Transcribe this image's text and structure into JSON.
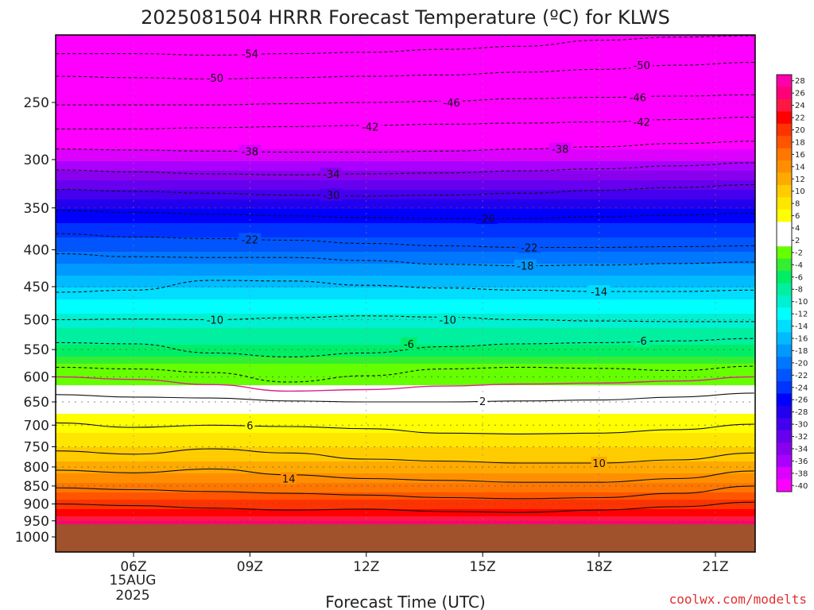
{
  "title": "2025081504 HRRR Forecast Temperature (ºC) for KLWS",
  "credit": "coolwx.com/modelts",
  "colors": {
    "terrain": "#a0522d",
    "freezing_line": "#e0208a"
  },
  "chart_data": {
    "type": "heatmap",
    "title": "2025081504 HRRR Forecast Temperature (ºC) for KLWS",
    "xlabel": "Forecast Time (UTC)",
    "ylabel": "",
    "y_axis": "pressure (hPa), inverted",
    "x_ticks": [
      {
        "label": "06Z",
        "hour": 6
      },
      {
        "label": "09Z",
        "hour": 9
      },
      {
        "label": "12Z",
        "hour": 12
      },
      {
        "label": "15Z",
        "hour": 15
      },
      {
        "label": "18Z",
        "hour": 18
      },
      {
        "label": "21Z",
        "hour": 21
      }
    ],
    "date_label": [
      "15AUG",
      "2025"
    ],
    "xlim": [
      4,
      22
    ],
    "y_ticks": [
      250,
      300,
      350,
      400,
      450,
      500,
      550,
      600,
      650,
      700,
      750,
      800,
      850,
      900,
      950,
      1000
    ],
    "ylim": [
      200,
      1030
    ],
    "surface_pressure": 960,
    "colorbar": {
      "ticks": [
        28,
        26,
        24,
        22,
        20,
        18,
        16,
        14,
        12,
        10,
        8,
        6,
        4,
        2,
        -2,
        -4,
        -6,
        -8,
        -10,
        -12,
        -14,
        -16,
        -18,
        -20,
        -22,
        -24,
        -26,
        -28,
        -30,
        -32,
        -34,
        -36,
        -38,
        -40
      ],
      "colors": [
        "#ff00aa",
        "#ff0077",
        "#ff1744",
        "#ff0000",
        "#ff3300",
        "#ff5500",
        "#ff7700",
        "#ff8f00",
        "#ffaa00",
        "#ffcc00",
        "#ffe600",
        "#ffff00",
        "#ffffff",
        "#ffffff",
        "#66ff00",
        "#33ee33",
        "#00ee66",
        "#00f0a0",
        "#00f0d0",
        "#00ffff",
        "#00ddff",
        "#00bbff",
        "#0099ff",
        "#0077ff",
        "#0055ff",
        "#0033ff",
        "#0000ff",
        "#2200ee",
        "#4400ee",
        "#6600ee",
        "#8800ee",
        "#aa00ff",
        "#dd00ff",
        "#ff00ff"
      ]
    },
    "temperature_profile": [
      {
        "p": 200,
        "t": -57
      },
      {
        "p": 225,
        "t": -52
      },
      {
        "p": 250,
        "t": -47
      },
      {
        "p": 275,
        "t": -42
      },
      {
        "p": 300,
        "t": -37
      },
      {
        "p": 325,
        "t": -32
      },
      {
        "p": 350,
        "t": -27
      },
      {
        "p": 375,
        "t": -24
      },
      {
        "p": 400,
        "t": -21
      },
      {
        "p": 425,
        "t": -18
      },
      {
        "p": 450,
        "t": -15
      },
      {
        "p": 475,
        "t": -12
      },
      {
        "p": 500,
        "t": -10
      },
      {
        "p": 525,
        "t": -8
      },
      {
        "p": 550,
        "t": -6
      },
      {
        "p": 575,
        "t": -3
      },
      {
        "p": 600,
        "t": -1
      },
      {
        "p": 625,
        "t": 1
      },
      {
        "p": 650,
        "t": 3
      },
      {
        "p": 675,
        "t": 5
      },
      {
        "p": 700,
        "t": 6
      },
      {
        "p": 750,
        "t": 9
      },
      {
        "p": 800,
        "t": 12
      },
      {
        "p": 850,
        "t": 16
      },
      {
        "p": 900,
        "t": 20
      },
      {
        "p": 950,
        "t": 25
      },
      {
        "p": 960,
        "t": 26
      }
    ],
    "contours": [
      {
        "temp": -54,
        "dashed": true,
        "p": [
          214,
          214,
          215,
          214,
          213,
          211,
          209,
          205,
          203,
          202
        ]
      },
      {
        "temp": -50,
        "dashed": true,
        "p": [
          230,
          231,
          232,
          231,
          230,
          229,
          227,
          225,
          222,
          220
        ]
      },
      {
        "temp": -46,
        "dashed": true,
        "p": [
          252,
          252,
          252,
          251,
          250,
          249,
          247,
          246,
          245,
          244
        ]
      },
      {
        "temp": -42,
        "dashed": true,
        "p": [
          272,
          272,
          271,
          270,
          269,
          268,
          267,
          266,
          264,
          262
        ]
      },
      {
        "temp": -38,
        "dashed": true,
        "p": [
          290,
          291,
          292,
          293,
          293,
          292,
          290,
          288,
          285,
          283
        ]
      },
      {
        "temp": -34,
        "dashed": true,
        "p": [
          310,
          312,
          314,
          315,
          314,
          313,
          311,
          309,
          306,
          303
        ]
      },
      {
        "temp": -30,
        "dashed": true,
        "p": [
          330,
          332,
          334,
          336,
          337,
          336,
          334,
          331,
          328,
          325
        ]
      },
      {
        "temp": -26,
        "dashed": true,
        "p": [
          353,
          355,
          357,
          359,
          361,
          362,
          362,
          360,
          358,
          356
        ]
      },
      {
        "temp": -22,
        "dashed": true,
        "p": [
          380,
          384,
          386,
          388,
          392,
          395,
          397,
          397,
          396,
          395
        ]
      },
      {
        "temp": -18,
        "dashed": true,
        "p": [
          405,
          409,
          410,
          410,
          414,
          419,
          421,
          420,
          418,
          416
        ]
      },
      {
        "temp": -14,
        "dashed": true,
        "p": [
          458,
          455,
          441,
          442,
          448,
          452,
          455,
          457,
          457,
          455
        ]
      },
      {
        "temp": -10,
        "dashed": true,
        "p": [
          500,
          499,
          500,
          497,
          494,
          496,
          500,
          502,
          503,
          503
        ]
      },
      {
        "temp": -6,
        "dashed": true,
        "p": [
          538,
          540,
          556,
          563,
          556,
          545,
          540,
          538,
          535,
          531
        ]
      },
      {
        "temp": -2,
        "dashed": true,
        "p": [
          582,
          585,
          592,
          610,
          598,
          585,
          582,
          584,
          588,
          580
        ]
      },
      {
        "temp": 2,
        "dashed": false,
        "p": [
          635,
          640,
          642,
          648,
          650,
          650,
          648,
          646,
          640,
          632
        ]
      },
      {
        "temp": 6,
        "dashed": false,
        "p": [
          695,
          705,
          700,
          703,
          708,
          718,
          720,
          718,
          710,
          698
        ]
      },
      {
        "temp": 10,
        "dashed": false,
        "p": [
          760,
          768,
          755,
          765,
          780,
          785,
          790,
          790,
          782,
          765
        ]
      },
      {
        "temp": 14,
        "dashed": false,
        "p": [
          808,
          815,
          805,
          820,
          830,
          835,
          840,
          840,
          830,
          810
        ]
      },
      {
        "temp": 18,
        "dashed": false,
        "p": [
          855,
          860,
          865,
          870,
          875,
          882,
          885,
          882,
          870,
          850
        ]
      },
      {
        "temp": 22,
        "dashed": false,
        "p": [
          900,
          905,
          912,
          918,
          915,
          922,
          925,
          918,
          908,
          895
        ]
      }
    ],
    "contour_hours": [
      4,
      6,
      8,
      10,
      12,
      14,
      16,
      18,
      20,
      22
    ],
    "freezing_line": {
      "temp": 0,
      "p": [
        600,
        605,
        615,
        628,
        625,
        618,
        614,
        612,
        608,
        600
      ]
    },
    "contour_labels": [
      {
        "text": "-54",
        "hour": 9.0,
        "p": 214
      },
      {
        "text": "-50",
        "hour": 8.1,
        "p": 231
      },
      {
        "text": "-50",
        "hour": 19.1,
        "p": 222
      },
      {
        "text": "-46",
        "hour": 14.2,
        "p": 250
      },
      {
        "text": "-46",
        "hour": 19.0,
        "p": 246
      },
      {
        "text": "-42",
        "hour": 12.1,
        "p": 270
      },
      {
        "text": "-42",
        "hour": 19.1,
        "p": 266
      },
      {
        "text": "-38",
        "hour": 9.0,
        "p": 292
      },
      {
        "text": "-38",
        "hour": 17.0,
        "p": 290
      },
      {
        "text": "-34",
        "hour": 11.1,
        "p": 314
      },
      {
        "text": "-30",
        "hour": 11.1,
        "p": 336
      },
      {
        "text": "-26",
        "hour": 15.1,
        "p": 362
      },
      {
        "text": "-22",
        "hour": 9.0,
        "p": 387
      },
      {
        "text": "-22",
        "hour": 16.2,
        "p": 397
      },
      {
        "text": "-18",
        "hour": 16.1,
        "p": 421
      },
      {
        "text": "-14",
        "hour": 18.0,
        "p": 457
      },
      {
        "text": "-10",
        "hour": 8.1,
        "p": 500
      },
      {
        "text": "-10",
        "hour": 14.1,
        "p": 500
      },
      {
        "text": "-6",
        "hour": 13.1,
        "p": 540
      },
      {
        "text": "-6",
        "hour": 19.1,
        "p": 535
      },
      {
        "text": "2",
        "hour": 15.0,
        "p": 648
      },
      {
        "text": "6",
        "hour": 9.0,
        "p": 700
      },
      {
        "text": "10",
        "hour": 18.0,
        "p": 790
      },
      {
        "text": "14",
        "hour": 10.0,
        "p": 830
      }
    ]
  }
}
